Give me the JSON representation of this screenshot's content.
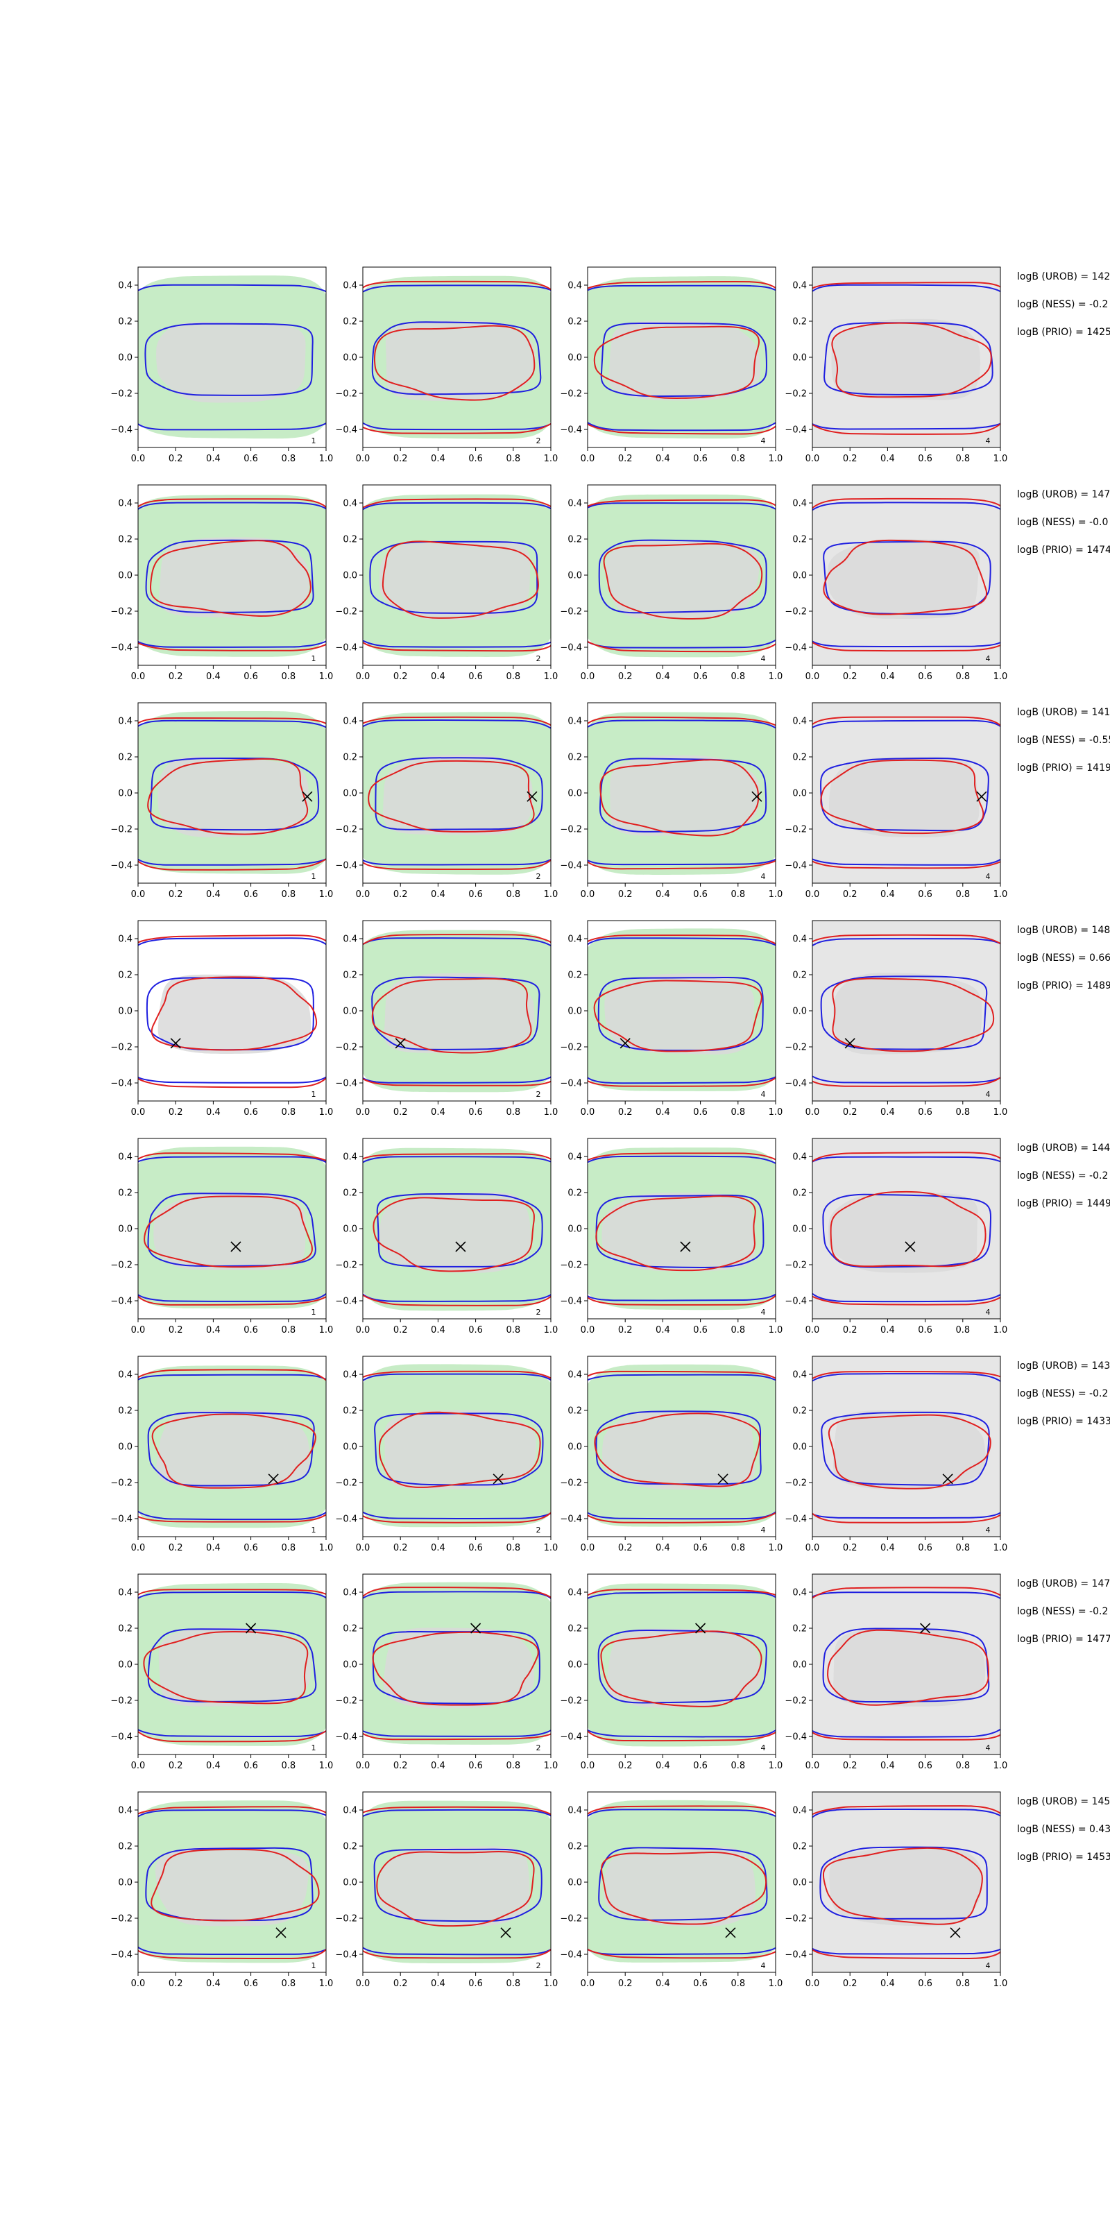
{
  "chart_data": {
    "type": "contour-grid",
    "rows": 8,
    "columns": 4,
    "xlim": [
      0.0,
      1.0
    ],
    "ylim": [
      -0.5,
      0.5
    ],
    "x_ticks": [
      "0.0",
      "0.2",
      "0.4",
      "0.6",
      "0.8",
      "1.0"
    ],
    "y_ticks": [
      "0.4",
      "0.2",
      "0.0",
      "−0.2",
      "−0.4"
    ],
    "panel_tags": [
      "1",
      "2",
      "4",
      "4"
    ],
    "colors": {
      "green_fill": "#c7ecc6",
      "gray_fill": "#d9d9d9",
      "light_gray_bg": "#e6e6e6",
      "blue_contour": "#1f1fe0",
      "red_contour": "#e01f1f",
      "marker": "#000000"
    },
    "row_data": [
      {
        "marker": null,
        "col1_background": "green",
        "labels": [
          "logB (UROB) = 142",
          "logB (NESS) = -0.2",
          "logB (PRIO) = 1425"
        ]
      },
      {
        "marker": null,
        "col1_background": "green",
        "labels": [
          "logB (UROB) = 147",
          "logB (NESS) = -0.0",
          "logB (PRIO) = 1474"
        ]
      },
      {
        "marker": [
          0.9,
          -0.02
        ],
        "col1_background": "green",
        "labels": [
          "logB (UROB) = 141",
          "logB (NESS) = -0.55",
          "logB (PRIO) = 1419"
        ]
      },
      {
        "marker": [
          0.2,
          -0.18
        ],
        "col1_background": "white",
        "labels": [
          "logB (UROB) = 148",
          "logB (NESS) = 0.66",
          "logB (PRIO) = 1489"
        ]
      },
      {
        "marker": [
          0.52,
          -0.1
        ],
        "col1_background": "green",
        "labels": [
          "logB (UROB) = 144",
          "logB (NESS) = -0.2",
          "logB (PRIO) = 1449"
        ]
      },
      {
        "marker": [
          0.72,
          -0.18
        ],
        "col1_background": "green",
        "labels": [
          "logB (UROB) = 143",
          "logB (NESS) = -0.2",
          "logB (PRIO) = 1433"
        ]
      },
      {
        "marker": [
          0.6,
          0.2
        ],
        "col1_background": "green",
        "labels": [
          "logB (UROB) = 147",
          "logB (NESS) = -0.2",
          "logB (PRIO) = 1477"
        ]
      },
      {
        "marker": [
          0.76,
          -0.28
        ],
        "col1_background": "green",
        "labels": [
          "logB (UROB) = 145",
          "logB (NESS) = 0.43",
          "logB (PRIO) = 1453"
        ]
      }
    ]
  }
}
